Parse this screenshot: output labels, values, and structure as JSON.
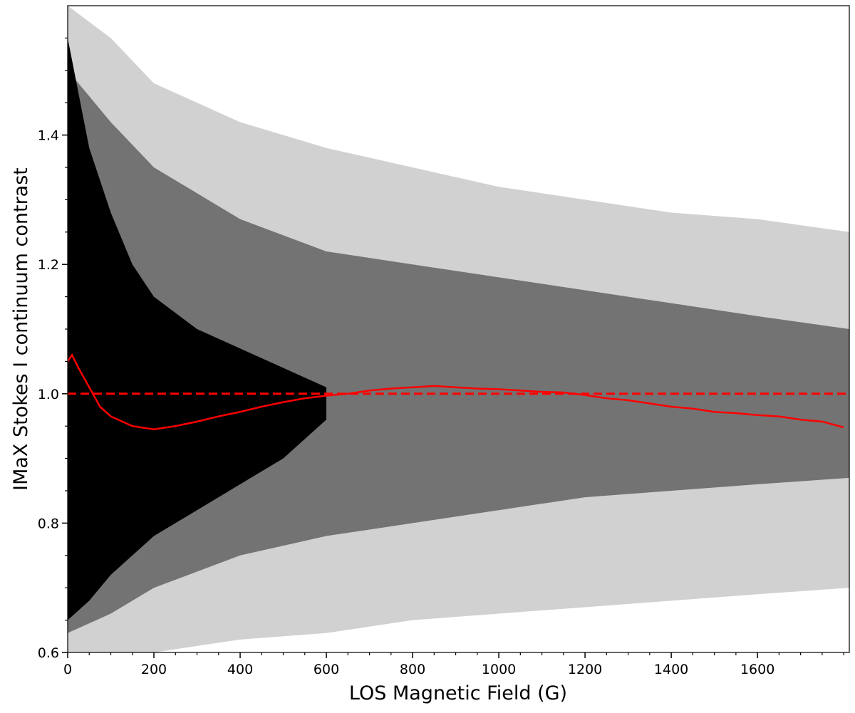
{
  "chart_data": {
    "type": "scatter",
    "x_label": "LOS Magnetic Field (G)",
    "y_label": "IMaX Stokes I continuum contrast",
    "xlim": [
      0,
      1813
    ],
    "ylim": [
      0.6,
      1.6
    ],
    "xticks": [
      0,
      200,
      400,
      600,
      800,
      1000,
      1200,
      1400,
      1600
    ],
    "yticks": [
      0.6,
      0.8,
      {
        "value": 1,
        "label": "1.0"
      },
      1.2,
      1.4
    ],
    "xminorticks": [
      50,
      100,
      150,
      250,
      300,
      350,
      450,
      500,
      550,
      650,
      700,
      750,
      850,
      900,
      950,
      1050,
      1100,
      1150,
      1250,
      1300,
      1350,
      1450,
      1500,
      1550,
      1650,
      1700,
      1750,
      1800
    ],
    "yminorticks": [
      0.65,
      0.7,
      0.75,
      0.85,
      0.9,
      0.95,
      1.05,
      1.1,
      1.15,
      1.25,
      1.3,
      1.35,
      1.45,
      1.5,
      1.55
    ],
    "bands": [
      {
        "color": "#000000",
        "opacity": 0.18,
        "x": [
          0,
          100,
          200,
          400,
          600,
          800,
          1000,
          1200,
          1400,
          1600,
          1813
        ],
        "upper": [
          1.6,
          1.55,
          1.48,
          1.42,
          1.38,
          1.35,
          1.32,
          1.3,
          1.28,
          1.27,
          1.25
        ],
        "lower": [
          0.6,
          0.6,
          0.6,
          0.62,
          0.63,
          0.65,
          0.66,
          0.67,
          0.68,
          0.69,
          0.7
        ]
      },
      {
        "color": "#000000",
        "opacity": 0.45,
        "x": [
          0,
          100,
          200,
          400,
          600,
          800,
          1000,
          1200,
          1400,
          1600,
          1813
        ],
        "upper": [
          1.5,
          1.42,
          1.35,
          1.27,
          1.22,
          1.2,
          1.18,
          1.16,
          1.14,
          1.12,
          1.1
        ],
        "lower": [
          0.63,
          0.66,
          0.7,
          0.75,
          0.78,
          0.8,
          0.82,
          0.84,
          0.85,
          0.86,
          0.87
        ]
      },
      {
        "color": "#000000",
        "opacity": 1,
        "x": [
          0,
          50,
          100,
          150,
          200,
          300,
          400,
          500,
          600
        ],
        "upper": [
          1.55,
          1.38,
          1.28,
          1.2,
          1.15,
          1.1,
          1.07,
          1.04,
          1.01
        ],
        "lower": [
          0.65,
          0.68,
          0.72,
          0.75,
          0.78,
          0.82,
          0.86,
          0.9,
          0.96
        ]
      }
    ],
    "series": [
      {
        "color": "#ff0000",
        "x": [
          0,
          10,
          25,
          50,
          75,
          100,
          150,
          200,
          250,
          300,
          350,
          400,
          450,
          500,
          550,
          600,
          650,
          700,
          750,
          800,
          850,
          900,
          950,
          1000,
          1050,
          1100,
          1150,
          1200,
          1250,
          1300,
          1350,
          1400,
          1450,
          1500,
          1550,
          1600,
          1650,
          1700,
          1750,
          1800
        ],
        "values": [
          1.05,
          1.06,
          1.04,
          1.01,
          0.98,
          0.965,
          0.95,
          0.945,
          0.95,
          0.957,
          0.965,
          0.972,
          0.98,
          0.987,
          0.993,
          0.997,
          1.0,
          1.005,
          1.008,
          1.01,
          1.012,
          1.01,
          1.008,
          1.007,
          1.005,
          1.003,
          1.002,
          0.998,
          0.993,
          0.99,
          0.985,
          0.98,
          0.977,
          0.972,
          0.97,
          0.967,
          0.965,
          0.96,
          0.957,
          0.948
        ]
      }
    ],
    "reference_line": {
      "value": 1,
      "color": "#ff0000"
    }
  }
}
